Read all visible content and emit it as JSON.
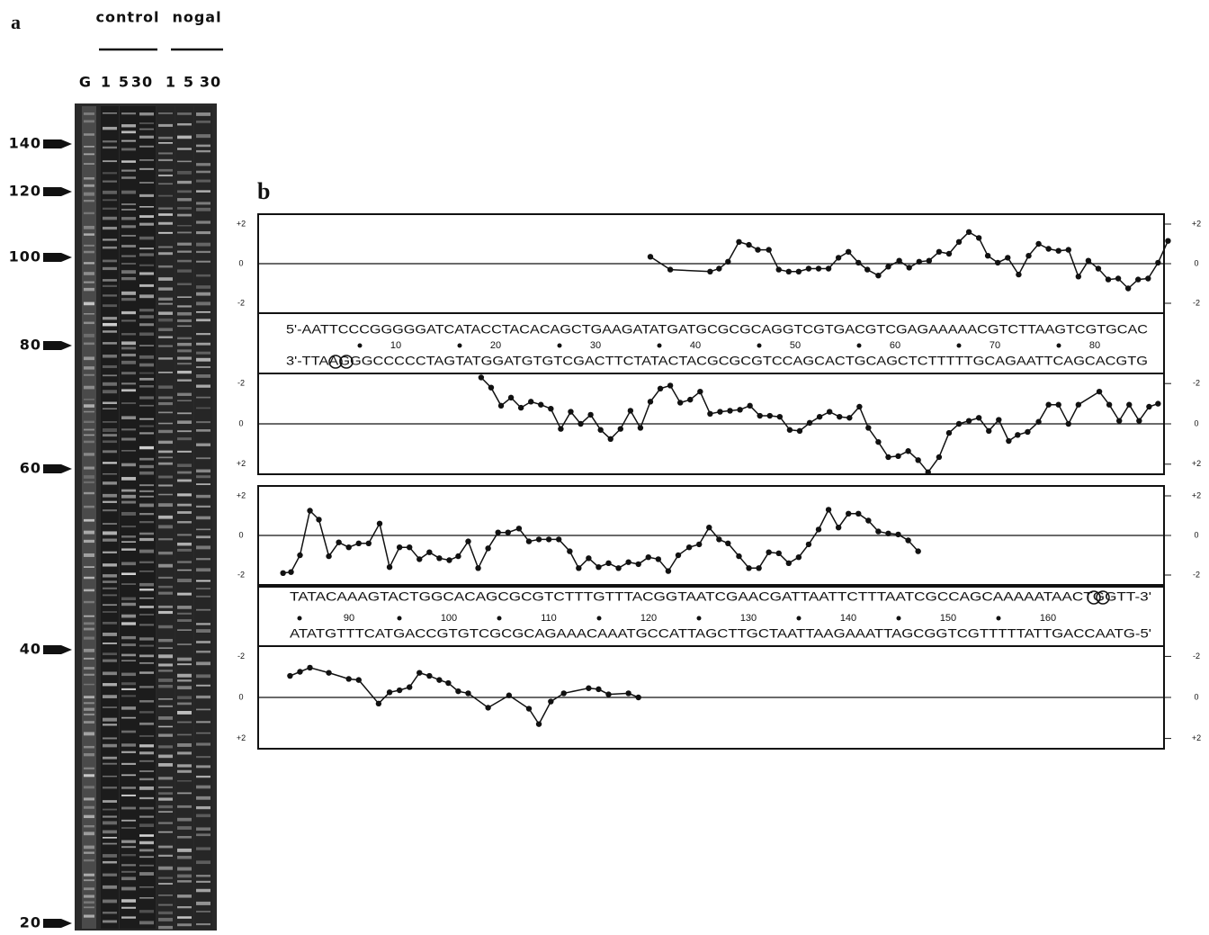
{
  "panel_a": {
    "label": "a",
    "conditions": [
      "control",
      "nogal"
    ],
    "lanes": [
      "G",
      "1",
      "5",
      "30",
      "1",
      "5",
      "30"
    ],
    "size_markers": [
      "140",
      "120",
      "100",
      "80",
      "60",
      "40",
      "20"
    ]
  },
  "panel_b": {
    "label": "b",
    "rows": [
      {
        "top_strand": "5'-AATTCCCGGGGGATCATACCTACACAGCTGAAGATATGATGCGCGCAGGTCGTGACGTCGAGAAAAACGTCTTAAGTCGTGCAC",
        "positions": [
          "10",
          "20",
          "30",
          "40",
          "50",
          "60",
          "70",
          "80"
        ],
        "bottom_strand": "3'-TTAAGGGCCCCCTAGTATGGATGTGTCGACTTCTATACTACGCGCGTCCAGCACTGCAGCTCTTTTTGCAGAATTCAGCACGTG"
      },
      {
        "top_strand": "TATACAAAGTACTGGCACAGCGCGTCTTTGTTTACGGTAATCGAACGATTAATTCTTTAATCGCCAGCAAAAATAACTGGTT-3'",
        "positions": [
          "90",
          "100",
          "110",
          "120",
          "130",
          "140",
          "150",
          "160"
        ],
        "bottom_strand": "ATATGTTTCATGACCGTGTCGCGCAGAAACAAATGCCATTAGCTTGCTAATTAAGAAATTAGCGGTCGTTTTTATTGACCAATG-5'"
      }
    ],
    "xlim": [
      0,
      91
    ],
    "plots": [
      {
        "ylim": [
          -2.5,
          2.5
        ],
        "yticks": [
          {
            "value": 2,
            "label": "+2"
          },
          0,
          -2
        ],
        "x": [
          39.4,
          41.4,
          45.4,
          46.3,
          47.2,
          48.3,
          49.3,
          50.2,
          51.3,
          52.3,
          53.3,
          54.3,
          55.3,
          56.3,
          57.3,
          58.3,
          59.3,
          60.3,
          61.2,
          62.3,
          63.3,
          64.4,
          65.4,
          66.4,
          67.4,
          68.4,
          69.4,
          70.4,
          71.4,
          72.4,
          73.3,
          74.3,
          75.3,
          76.4,
          77.4,
          78.4,
          79.4,
          80.4,
          81.4,
          82.4,
          83.4,
          84.4,
          85.4,
          86.4,
          87.4,
          88.4,
          89.4,
          90.4,
          91.4
        ],
        "values": [
          0.35,
          -0.3,
          -0.4,
          -0.25,
          0.1,
          1.1,
          0.95,
          0.7,
          0.7,
          -0.3,
          -0.4,
          -0.4,
          -0.25,
          -0.25,
          -0.25,
          0.3,
          0.6,
          0.05,
          -0.3,
          -0.6,
          -0.15,
          0.15,
          -0.2,
          0.1,
          0.15,
          0.6,
          0.5,
          1.1,
          1.6,
          1.3,
          0.4,
          0.05,
          0.3,
          -0.55,
          0.4,
          1.0,
          0.75,
          0.65,
          0.7,
          -0.65,
          0.15,
          -0.25,
          -0.8,
          -0.75,
          -1.25,
          -0.8,
          -0.75,
          0.05,
          1.15
        ]
      },
      {
        "ylim": [
          2.5,
          -2.5
        ],
        "yticks": [
          -2,
          0,
          {
            "value": 2,
            "label": "+2"
          }
        ],
        "x": [
          22.4,
          23.4,
          24.4,
          25.4,
          26.4,
          27.4,
          28.4,
          29.4,
          30.4,
          31.4,
          32.4,
          33.4,
          34.4,
          35.4,
          36.4,
          37.4,
          38.4,
          39.4,
          40.4,
          41.4,
          42.4,
          43.4,
          44.4,
          45.4,
          46.4,
          47.4,
          48.4,
          49.4,
          50.4,
          51.4,
          52.4,
          53.4,
          54.4,
          55.4,
          56.4,
          57.4,
          58.4,
          59.4,
          60.4,
          61.3,
          62.3,
          63.3,
          64.3,
          65.3,
          66.3,
          67.3,
          68.4,
          69.4,
          70.4,
          71.4,
          72.4,
          73.4,
          74.4,
          75.4,
          76.3,
          77.3,
          78.4,
          79.4,
          80.4,
          81.4,
          82.4,
          84.5,
          85.5,
          86.5,
          87.5,
          88.5,
          89.5,
          90.4
        ],
        "values": [
          -2.3,
          -1.8,
          -0.9,
          -1.3,
          -0.8,
          -1.1,
          -0.95,
          -0.75,
          0.25,
          -0.6,
          0,
          -0.45,
          0.3,
          0.75,
          0.25,
          -0.65,
          0.2,
          -1.1,
          -1.75,
          -1.9,
          -1.05,
          -1.2,
          -1.6,
          -0.5,
          -0.6,
          -0.65,
          -0.7,
          -0.9,
          -0.4,
          -0.4,
          -0.35,
          0.3,
          0.35,
          -0.05,
          -0.35,
          -0.6,
          -0.35,
          -0.3,
          -0.85,
          0.2,
          0.9,
          1.65,
          1.6,
          1.35,
          1.8,
          2.4,
          1.65,
          0.45,
          0,
          -0.15,
          -0.3,
          0.35,
          -0.2,
          0.85,
          0.55,
          0.4,
          -0.1,
          -0.95,
          -0.95,
          0,
          -0.95,
          -1.6,
          -0.95,
          -0.15,
          -0.95,
          -0.15,
          -0.85,
          -1.0
        ]
      },
      {
        "ylim": [
          -2.5,
          2.5
        ],
        "yticks": [
          {
            "value": 2,
            "label": "+2"
          },
          0,
          -2
        ],
        "x": [
          2.5,
          3.3,
          4.2,
          5.2,
          6.1,
          7.1,
          8.1,
          9.1,
          10.1,
          11.1,
          12.2,
          13.2,
          14.2,
          15.2,
          16.2,
          17.2,
          18.2,
          19.2,
          20.1,
          21.1,
          22.1,
          23.1,
          24.1,
          25.1,
          26.2,
          27.2,
          28.2,
          29.2,
          30.2,
          31.3,
          32.2,
          33.2,
          34.2,
          35.2,
          36.2,
          37.2,
          38.2,
          39.2,
          40.2,
          41.2,
          42.2,
          43.3,
          44.3,
          45.3,
          46.3,
          47.2,
          48.3,
          49.3,
          50.3,
          51.3,
          52.3,
          53.3,
          54.3,
          55.3,
          56.3,
          57.3,
          58.3,
          59.3,
          60.3,
          61.3,
          62.3,
          63.3,
          64.3,
          65.3,
          66.3
        ],
        "values": [
          -1.9,
          -1.85,
          -1.0,
          1.25,
          0.8,
          -1.05,
          -0.35,
          -0.6,
          -0.4,
          -0.4,
          0.6,
          -1.6,
          -0.6,
          -0.6,
          -1.2,
          -0.85,
          -1.15,
          -1.25,
          -1.05,
          -0.3,
          -1.65,
          -0.65,
          0.15,
          0.15,
          0.35,
          -0.3,
          -0.2,
          -0.2,
          -0.2,
          -0.8,
          -1.65,
          -1.15,
          -1.6,
          -1.4,
          -1.65,
          -1.35,
          -1.45,
          -1.1,
          -1.2,
          -1.8,
          -1.0,
          -0.6,
          -0.45,
          0.4,
          -0.2,
          -0.4,
          -1.05,
          -1.65,
          -1.65,
          -0.85,
          -0.9,
          -1.4,
          -1.1,
          -0.45,
          0.3,
          1.3,
          0.4,
          1.1,
          1.1,
          0.75,
          0.2,
          0.1,
          0.05,
          -0.25,
          -0.8
        ]
      },
      {
        "ylim": [
          2.5,
          -2.5
        ],
        "yticks": [
          -2,
          0,
          {
            "value": 2,
            "label": "+2"
          }
        ],
        "x": [
          3.2,
          4.2,
          5.2,
          7.1,
          9.1,
          10.1,
          12.1,
          13.2,
          14.2,
          15.2,
          16.2,
          17.2,
          18.2,
          19.1,
          20.1,
          21.1,
          23.1,
          25.2,
          27.2,
          28.2,
          29.4,
          30.7,
          33.2,
          34.2,
          35.2,
          37.2,
          38.2
        ],
        "values": [
          -1.05,
          -1.25,
          -1.45,
          -1.2,
          -0.9,
          -0.85,
          0.3,
          -0.25,
          -0.35,
          -0.5,
          -1.2,
          -1.05,
          -0.85,
          -0.7,
          -0.3,
          -0.2,
          0.5,
          -0.1,
          0.55,
          1.3,
          0.2,
          -0.2,
          -0.45,
          -0.4,
          -0.15,
          -0.2,
          0
        ]
      }
    ]
  }
}
